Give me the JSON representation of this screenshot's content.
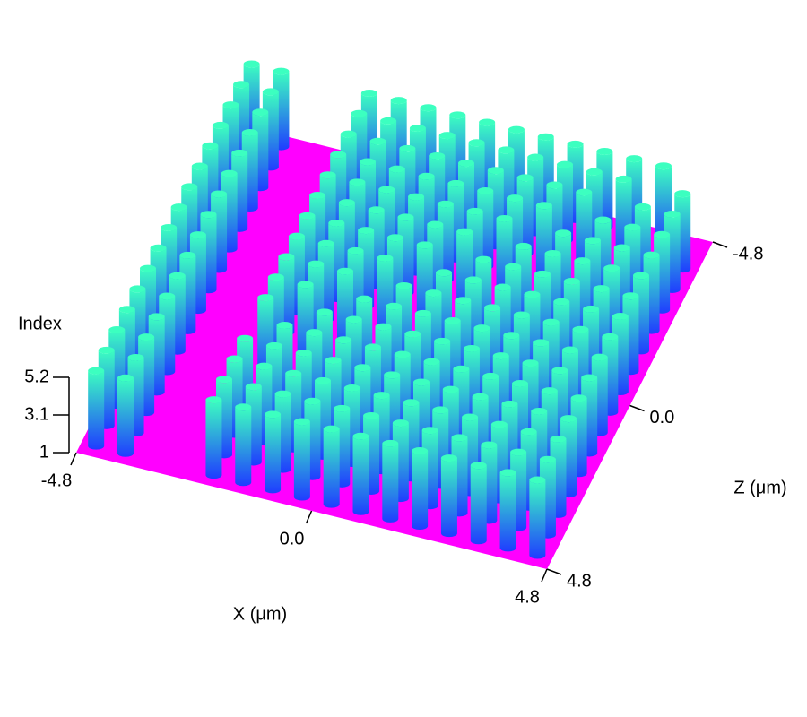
{
  "chart_data": {
    "type": "surface",
    "y_label": "Index",
    "x_label": "X (μm)",
    "z_label": "Z (μm)",
    "xlim": [
      -4.8,
      4.8
    ],
    "xticks": [
      -4.8,
      {
        "value": 0,
        "label": "0.0"
      },
      4.8
    ],
    "zlim": [
      -4.8,
      4.8
    ],
    "zticks": [
      -4.8,
      {
        "value": 0,
        "label": "0.0"
      },
      4.8
    ],
    "ylim": [
      1,
      5.2
    ],
    "yticks": [
      1,
      3.1,
      5.2
    ],
    "colors": {
      "floor": "#ff00ff",
      "rod_bottom": "#1f3cff",
      "rod_top": "#3cffc0"
    },
    "values": [
      [
        5.2,
        5.2,
        5.2,
        5.2,
        5.2,
        5.2,
        5.2,
        5.2,
        5.2,
        5.2,
        5.2,
        5.2,
        5.2,
        5.2,
        5.2,
        5.2
      ],
      [
        5.2,
        5.2,
        5.2,
        5.2,
        5.2,
        5.2,
        5.2,
        5.2,
        5.2,
        5.2,
        5.2,
        5.2,
        5.2,
        5.2,
        5.2,
        5.2
      ],
      [
        1,
        1,
        1,
        1,
        1,
        1,
        1,
        1,
        1,
        1,
        1,
        1,
        1,
        1,
        1,
        1
      ],
      [
        1,
        1,
        1,
        1,
        1,
        1,
        1,
        1,
        1,
        1,
        1,
        1,
        1,
        1,
        1,
        1
      ],
      [
        5.2,
        5.2,
        5.2,
        5.2,
        5.2,
        5.2,
        5.2,
        5.2,
        5.2,
        5.2,
        5.2,
        1,
        5.2,
        5.2,
        5.2,
        5.2
      ],
      [
        5.2,
        5.2,
        5.2,
        5.2,
        5.2,
        5.2,
        5.2,
        5.2,
        5.2,
        5.2,
        1,
        5.2,
        5.2,
        5.2,
        5.2,
        5.2
      ],
      [
        5.2,
        5.2,
        5.2,
        5.2,
        5.2,
        5.2,
        5.2,
        5.2,
        5.2,
        1,
        5.2,
        5.2,
        5.2,
        5.2,
        5.2,
        5.2
      ],
      [
        5.2,
        5.2,
        5.2,
        5.2,
        5.2,
        5.2,
        5.2,
        5.2,
        1,
        5.2,
        5.2,
        5.2,
        5.2,
        5.2,
        5.2,
        5.2
      ],
      [
        5.2,
        5.2,
        5.2,
        5.2,
        5.2,
        5.2,
        5.2,
        1,
        5.2,
        5.2,
        5.2,
        5.2,
        5.2,
        5.2,
        5.2,
        5.2
      ],
      [
        5.2,
        5.2,
        5.2,
        5.2,
        5.2,
        5.2,
        1,
        5.2,
        5.2,
        5.2,
        5.2,
        5.2,
        5.2,
        5.2,
        5.2,
        5.2
      ],
      [
        5.2,
        5.2,
        5.2,
        5.2,
        5.2,
        1,
        5.2,
        5.2,
        5.2,
        5.2,
        5.2,
        5.2,
        5.2,
        5.2,
        5.2,
        5.2
      ],
      [
        5.2,
        5.2,
        5.2,
        5.2,
        1,
        5.2,
        5.2,
        5.2,
        5.2,
        5.2,
        5.2,
        5.2,
        5.2,
        5.2,
        5.2,
        5.2
      ],
      [
        5.2,
        5.2,
        5.2,
        1,
        5.2,
        5.2,
        5.2,
        5.2,
        5.2,
        5.2,
        5.2,
        5.2,
        5.2,
        5.2,
        5.2,
        5.2
      ],
      [
        5.2,
        5.2,
        1,
        5.2,
        5.2,
        5.2,
        5.2,
        5.2,
        5.2,
        5.2,
        5.2,
        5.2,
        5.2,
        5.2,
        5.2,
        5.2
      ],
      [
        5.2,
        1,
        5.2,
        5.2,
        5.2,
        5.2,
        5.2,
        5.2,
        5.2,
        5.2,
        5.2,
        5.2,
        5.2,
        5.2,
        5.2,
        5.2
      ],
      [
        1,
        5.2,
        5.2,
        5.2,
        5.2,
        5.2,
        5.2,
        5.2,
        5.2,
        5.2,
        5.2,
        5.2,
        5.2,
        5.2,
        5.2,
        5.2
      ]
    ]
  }
}
